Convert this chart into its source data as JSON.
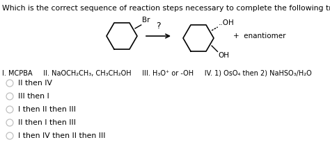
{
  "background_color": "#ffffff",
  "title_text": "Which is the correct sequence of reaction steps necessary to complete the following transformation?",
  "title_fontsize": 7.8,
  "reagents_text": "I. MCPBA     II. NaOCH₂CH₃, CH₃CH₂OH     III. H₃O⁺ or -OH     IV. 1) OsO₄ then 2) NaHSO₃/H₂O",
  "reagents_fontsize": 7.0,
  "enantiomer_text": "+  enantiomer",
  "enantiomer_fontsize": 7.5,
  "question_mark": "?",
  "br_label": "Br",
  "oh_top_label": "..OH",
  "oh_bot_label": "OH",
  "options": [
    "II then IV",
    "III then I",
    "I then II then III",
    "II then I then III",
    "I then IV then II then III"
  ],
  "option_fontsize": 7.8,
  "circle_color": "#c0c0c0",
  "circle_lw": 0.9,
  "text_color": "#000000"
}
